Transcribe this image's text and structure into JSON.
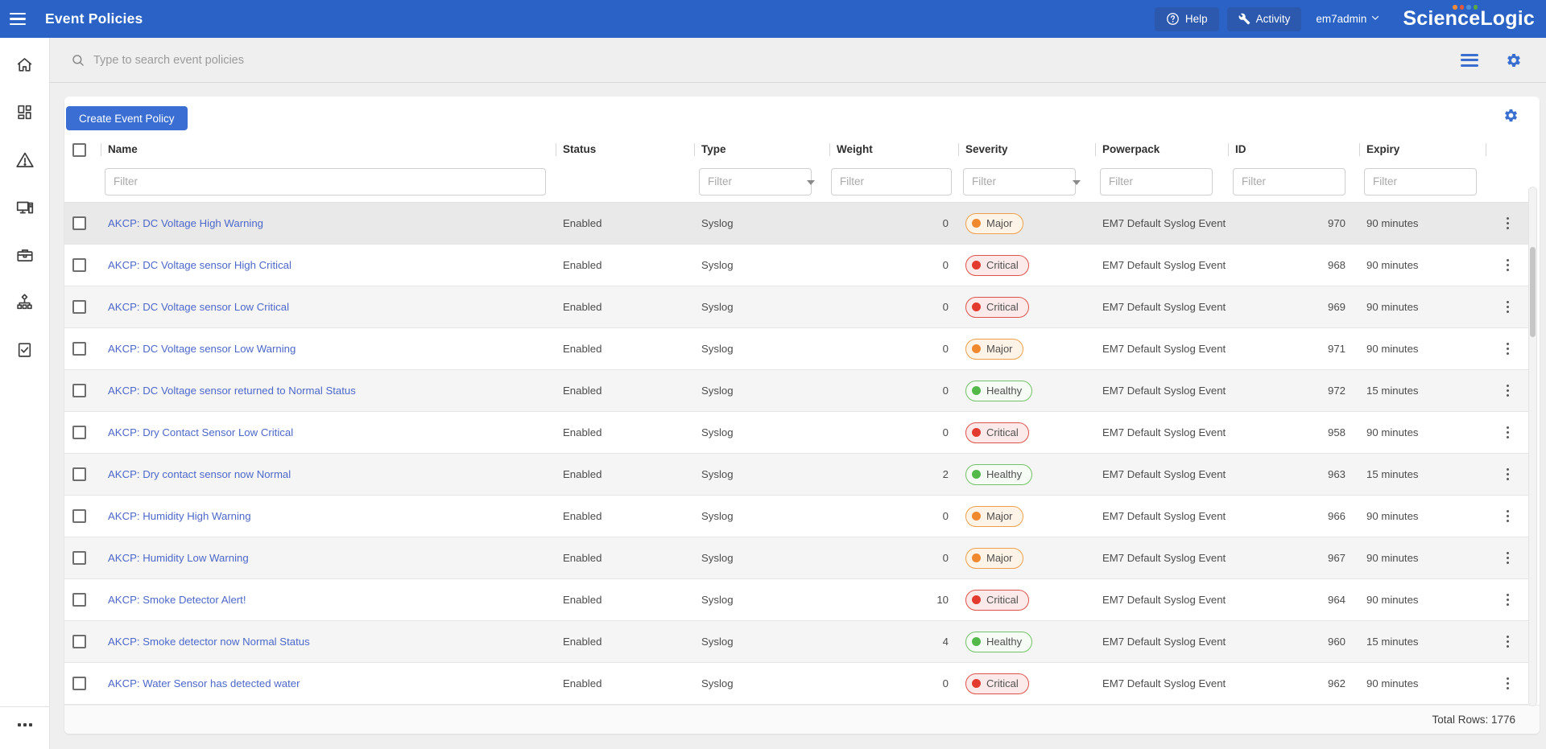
{
  "header": {
    "title": "Event Policies",
    "help_label": "Help",
    "activity_label": "Activity",
    "user": "em7admin",
    "brand": "ScienceLogic"
  },
  "search": {
    "placeholder": "Type to search event policies"
  },
  "toolbar": {
    "create_button": "Create Event Policy"
  },
  "sidebar": {
    "icons": [
      "home",
      "dashboards",
      "events",
      "devices",
      "business-services",
      "maps",
      "checklist",
      "more"
    ]
  },
  "table": {
    "columns": [
      "Name",
      "Status",
      "Type",
      "Weight",
      "Severity",
      "Powerpack",
      "ID",
      "Expiry"
    ],
    "filter_placeholder": "Filter",
    "rows": [
      {
        "name": "AKCP: DC Voltage High Warning",
        "status": "Enabled",
        "type": "Syslog",
        "weight": "0",
        "severity": "Major",
        "powerpack": "EM7 Default Syslog Event",
        "id": "970",
        "expiry": "90 minutes"
      },
      {
        "name": "AKCP: DC Voltage sensor High Critical",
        "status": "Enabled",
        "type": "Syslog",
        "weight": "0",
        "severity": "Critical",
        "powerpack": "EM7 Default Syslog Event",
        "id": "968",
        "expiry": "90 minutes"
      },
      {
        "name": "AKCP: DC Voltage sensor Low Critical",
        "status": "Enabled",
        "type": "Syslog",
        "weight": "0",
        "severity": "Critical",
        "powerpack": "EM7 Default Syslog Event",
        "id": "969",
        "expiry": "90 minutes"
      },
      {
        "name": "AKCP: DC Voltage sensor Low Warning",
        "status": "Enabled",
        "type": "Syslog",
        "weight": "0",
        "severity": "Major",
        "powerpack": "EM7 Default Syslog Event",
        "id": "971",
        "expiry": "90 minutes"
      },
      {
        "name": "AKCP: DC Voltage sensor returned to Normal Status",
        "status": "Enabled",
        "type": "Syslog",
        "weight": "0",
        "severity": "Healthy",
        "powerpack": "EM7 Default Syslog Event",
        "id": "972",
        "expiry": "15 minutes"
      },
      {
        "name": "AKCP: Dry Contact Sensor Low Critical",
        "status": "Enabled",
        "type": "Syslog",
        "weight": "0",
        "severity": "Critical",
        "powerpack": "EM7 Default Syslog Event",
        "id": "958",
        "expiry": "90 minutes"
      },
      {
        "name": "AKCP: Dry contact sensor now Normal",
        "status": "Enabled",
        "type": "Syslog",
        "weight": "2",
        "severity": "Healthy",
        "powerpack": "EM7 Default Syslog Event",
        "id": "963",
        "expiry": "15 minutes"
      },
      {
        "name": "AKCP: Humidity High Warning",
        "status": "Enabled",
        "type": "Syslog",
        "weight": "0",
        "severity": "Major",
        "powerpack": "EM7 Default Syslog Event",
        "id": "966",
        "expiry": "90 minutes"
      },
      {
        "name": "AKCP: Humidity Low Warning",
        "status": "Enabled",
        "type": "Syslog",
        "weight": "0",
        "severity": "Major",
        "powerpack": "EM7 Default Syslog Event",
        "id": "967",
        "expiry": "90 minutes"
      },
      {
        "name": "AKCP: Smoke Detector Alert!",
        "status": "Enabled",
        "type": "Syslog",
        "weight": "10",
        "severity": "Critical",
        "powerpack": "EM7 Default Syslog Event",
        "id": "964",
        "expiry": "90 minutes"
      },
      {
        "name": "AKCP: Smoke detector now Normal Status",
        "status": "Enabled",
        "type": "Syslog",
        "weight": "4",
        "severity": "Healthy",
        "powerpack": "EM7 Default Syslog Event",
        "id": "960",
        "expiry": "15 minutes"
      },
      {
        "name": "AKCP: Water Sensor has detected water",
        "status": "Enabled",
        "type": "Syslog",
        "weight": "0",
        "severity": "Critical",
        "powerpack": "EM7 Default Syslog Event",
        "id": "962",
        "expiry": "90 minutes"
      }
    ],
    "footer": {
      "total_label": "Total Rows: 1776"
    }
  },
  "colors": {
    "topbar": "#2b62c6",
    "accent": "#3a6ed2",
    "link": "#4d68c9",
    "logo_dots": [
      "#ef8a3c",
      "#e45a40",
      "#4a90d9",
      "#5aa746"
    ],
    "severity": {
      "Major": {
        "border": "#eda04c",
        "bg": "#fdf3e6",
        "dot": "#f0882d"
      },
      "Critical": {
        "border": "#dd5248",
        "bg": "#fceaea",
        "dot": "#e23a2e"
      },
      "Healthy": {
        "border": "#72c267",
        "bg": "#f6fbf5",
        "dot": "#53b948"
      }
    }
  }
}
